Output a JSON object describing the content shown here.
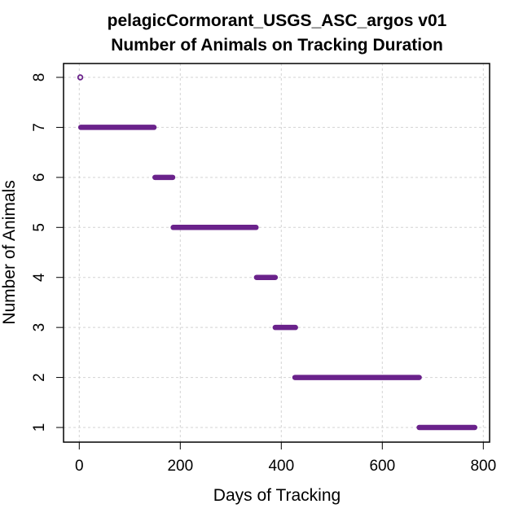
{
  "chart_data": {
    "type": "line",
    "title": "pelagicCormorant_USGS_ASC_argos v01",
    "subtitle": "Number of Animals on Tracking Duration",
    "xlabel": "Days of Tracking",
    "ylabel": "Number of Animals",
    "xlim": [
      0,
      800
    ],
    "ylim": [
      1,
      8
    ],
    "xticks": [
      "0",
      "200",
      "400",
      "600",
      "800"
    ],
    "yticks": [
      "1",
      "2",
      "3",
      "4",
      "5",
      "6",
      "7",
      "8"
    ],
    "grid": true,
    "color": "#6a228b",
    "series": [
      {
        "y": 8,
        "x_start": 2,
        "x_end": 2
      },
      {
        "y": 7,
        "x_start": 3,
        "x_end": 148
      },
      {
        "y": 6,
        "x_start": 150,
        "x_end": 185
      },
      {
        "y": 5,
        "x_start": 186,
        "x_end": 350
      },
      {
        "y": 4,
        "x_start": 351,
        "x_end": 388
      },
      {
        "y": 3,
        "x_start": 388,
        "x_end": 428
      },
      {
        "y": 2,
        "x_start": 427,
        "x_end": 673
      },
      {
        "y": 1,
        "x_start": 673,
        "x_end": 783
      }
    ]
  }
}
